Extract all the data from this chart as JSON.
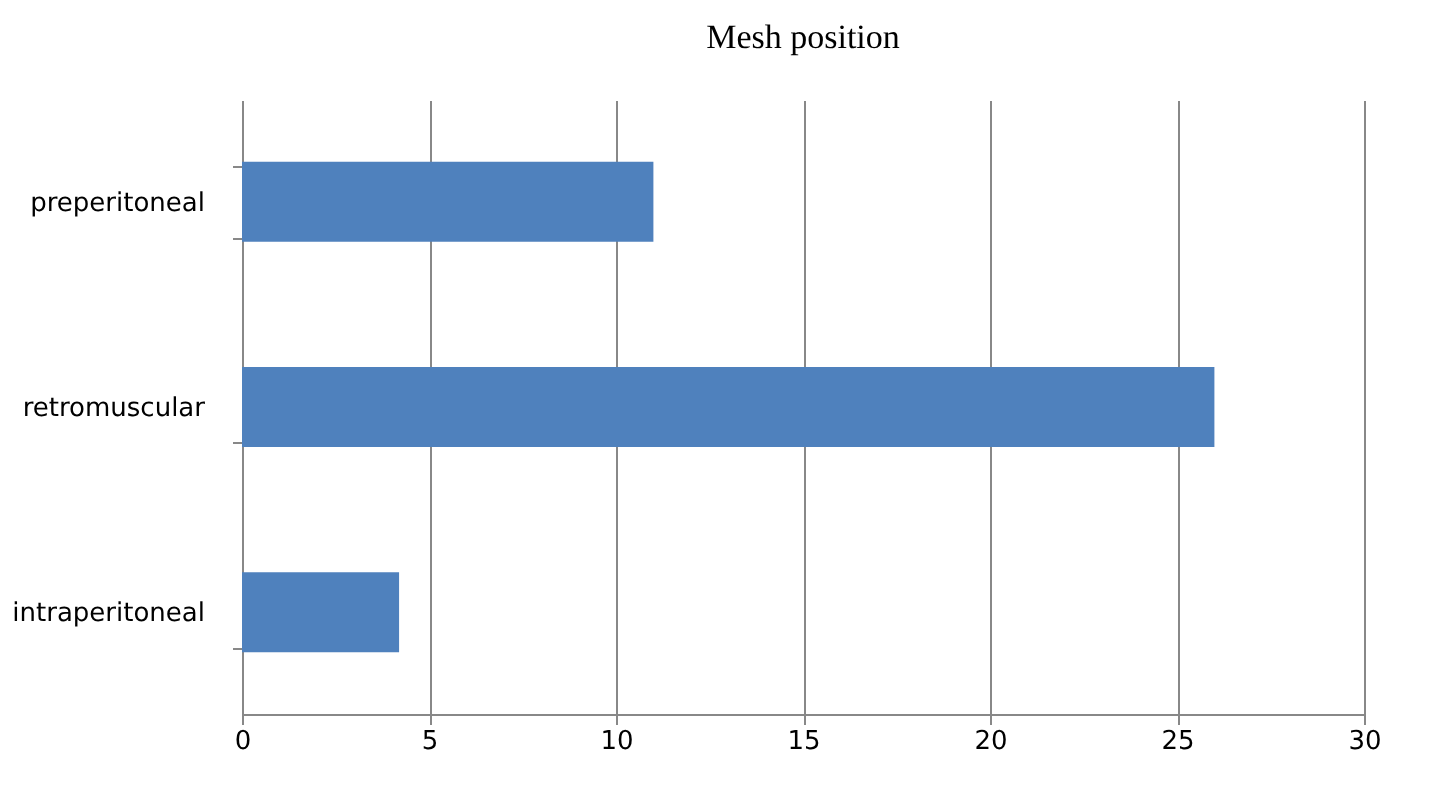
{
  "chart_data": {
    "type": "bar",
    "orientation": "horizontal",
    "title": "Mesh position",
    "categories": [
      "preperitoneal",
      "retromuscular",
      "intraperitoneal"
    ],
    "values": [
      11,
      26,
      4.2
    ],
    "color": "#4f81bd",
    "xlim": [
      0,
      30
    ],
    "xticks": [
      0,
      5,
      10,
      15,
      20,
      25,
      30
    ],
    "grid": "x"
  }
}
